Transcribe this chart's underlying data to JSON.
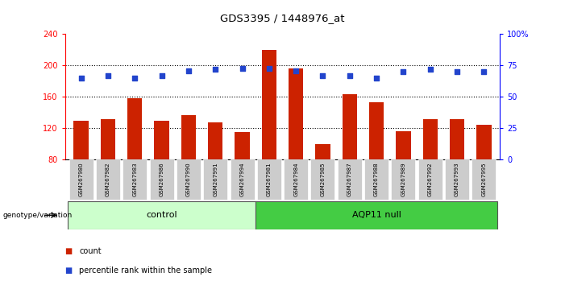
{
  "title": "GDS3395 / 1448976_at",
  "categories": [
    "GSM267980",
    "GSM267982",
    "GSM267983",
    "GSM267986",
    "GSM267990",
    "GSM267991",
    "GSM267994",
    "GSM267981",
    "GSM267984",
    "GSM267985",
    "GSM267987",
    "GSM267988",
    "GSM267989",
    "GSM267992",
    "GSM267993",
    "GSM267995"
  ],
  "bar_values": [
    130,
    132,
    158,
    130,
    137,
    127,
    115,
    220,
    196,
    100,
    163,
    153,
    116,
    132,
    132,
    124
  ],
  "dot_values": [
    65,
    67,
    65,
    67,
    71,
    72,
    73,
    73,
    71,
    67,
    67,
    65,
    70,
    72,
    70,
    70
  ],
  "bar_color": "#cc2200",
  "dot_color": "#2244cc",
  "ylim_left": [
    80,
    240
  ],
  "ylim_right": [
    0,
    100
  ],
  "yticks_left": [
    80,
    120,
    160,
    200,
    240
  ],
  "yticks_right": [
    0,
    25,
    50,
    75,
    100
  ],
  "yticklabels_right": [
    "0",
    "25",
    "50",
    "75",
    "100%"
  ],
  "group1_label": "control",
  "group2_label": "AQP11 null",
  "group1_count": 7,
  "group2_count": 9,
  "genotype_label": "genotype/variation",
  "legend_count_label": "count",
  "legend_percentile_label": "percentile rank within the sample",
  "group1_color": "#ccffcc",
  "group2_color": "#44cc44",
  "background_color": "#ffffff"
}
